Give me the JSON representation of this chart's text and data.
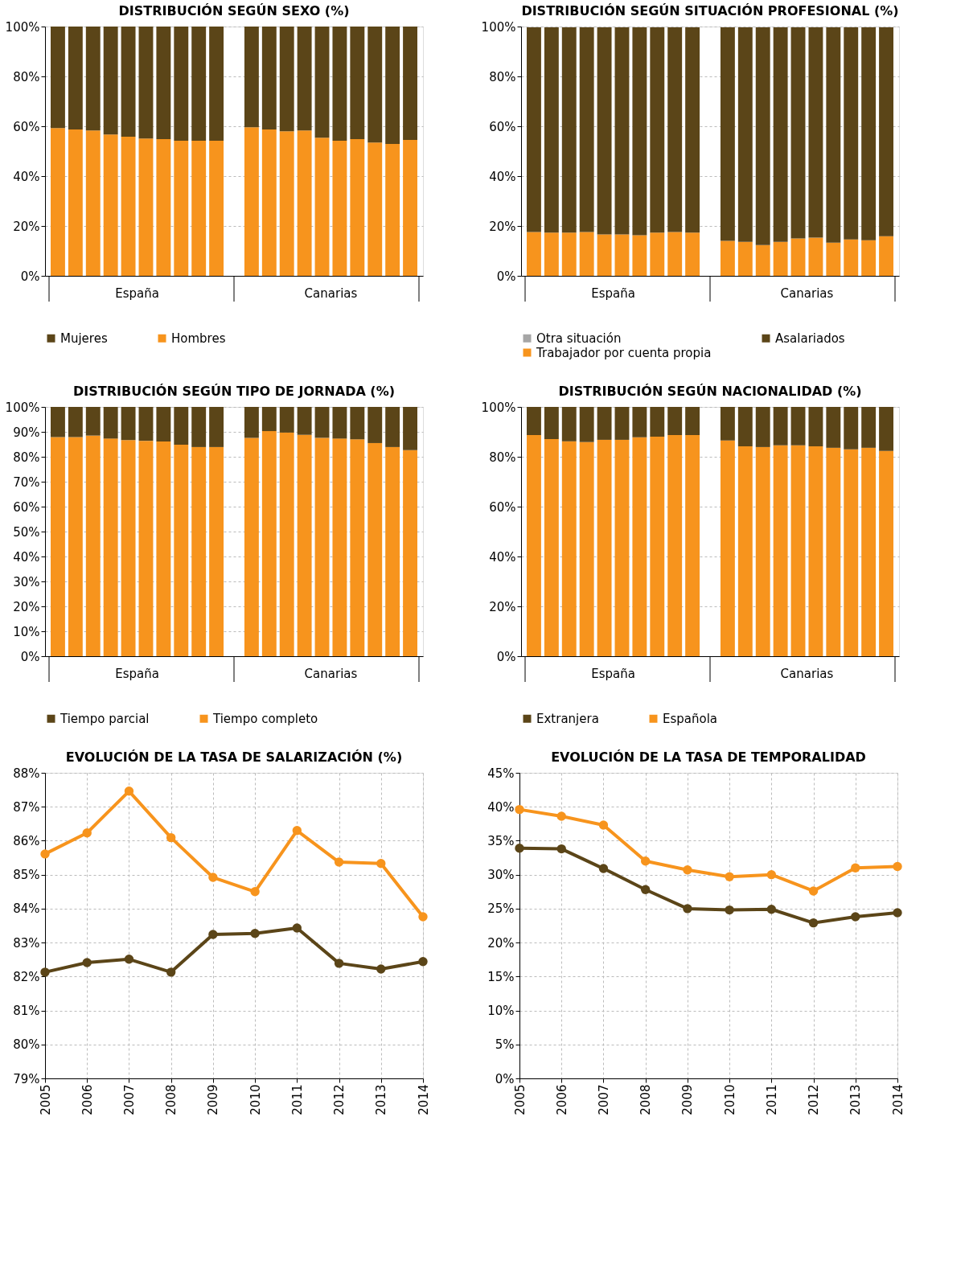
{
  "chart_data": [
    {
      "type": "bar",
      "title": "DISTRIBUCIÓN SEGÚN SEXO (%)",
      "stacked": true,
      "grid": "y",
      "legend": "bottom",
      "categories": [
        null,
        null,
        null,
        null,
        null,
        null,
        null,
        null,
        null,
        null,
        null,
        null,
        null,
        null,
        null,
        null,
        null,
        null,
        null,
        null,
        null
      ],
      "series": [
        {
          "name": "Hombres",
          "color": "#f7941d",
          "values": [
            59.3,
            58.7,
            58.3,
            56.7,
            55.8,
            55.1,
            54.8,
            54.2,
            54.2,
            54.2,
            null,
            59.6,
            58.7,
            58.0,
            58.3,
            55.4,
            54.2,
            54.8,
            53.5,
            52.9,
            54.5
          ]
        },
        {
          "name": "Mujeres",
          "color": "#5b4518",
          "values": [
            40.7,
            41.3,
            41.7,
            43.3,
            44.2,
            44.9,
            45.2,
            45.8,
            45.8,
            45.8,
            null,
            40.4,
            41.3,
            42.0,
            41.7,
            44.6,
            45.8,
            45.2,
            46.5,
            47.1,
            45.5
          ]
        }
      ],
      "ylim": [
        0,
        100
      ],
      "yticks": [
        {
          "value": 0,
          "label": "0%"
        },
        {
          "value": 20,
          "label": "20%"
        },
        {
          "value": 40,
          "label": "40%"
        },
        {
          "value": 60,
          "label": "60%"
        },
        {
          "value": 80,
          "label": "80%"
        },
        {
          "value": 100,
          "label": "100%"
        }
      ],
      "annotations": [
        "España",
        "Canarias"
      ]
    },
    {
      "type": "bar",
      "title": "DISTRIBUCIÓN SEGÚN SITUACIÓN PROFESIONAL (%)",
      "stacked": true,
      "grid": "y",
      "legend": "bottom",
      "categories": [
        null,
        null,
        null,
        null,
        null,
        null,
        null,
        null,
        null,
        null,
        null,
        null,
        null,
        null,
        null,
        null,
        null,
        null,
        null,
        null,
        null
      ],
      "series": [
        {
          "name": "Trabajador por cuenta propia",
          "color": "#f7941d",
          "values": [
            17.6,
            17.3,
            17.3,
            17.6,
            16.6,
            16.6,
            16.3,
            17.3,
            17.6,
            17.3,
            null,
            14.0,
            13.6,
            12.3,
            13.6,
            15.0,
            15.3,
            13.3,
            14.6,
            14.3,
            15.9
          ]
        },
        {
          "name": "Asalariados",
          "color": "#5b4518",
          "values": [
            82.1,
            82.4,
            82.4,
            82.1,
            83.1,
            83.1,
            83.4,
            82.4,
            82.1,
            82.4,
            null,
            85.7,
            86.1,
            87.4,
            86.1,
            84.7,
            84.4,
            86.4,
            85.1,
            85.4,
            83.8
          ]
        },
        {
          "name": "Otra situación",
          "color": "#a6a6a6",
          "values": [
            null,
            null,
            null,
            null,
            null,
            null,
            null,
            null,
            null,
            null,
            null,
            null,
            null,
            null,
            null,
            null,
            null,
            null,
            null,
            null,
            null
          ]
        }
      ],
      "ylim": [
        0,
        100
      ],
      "yticks": [
        {
          "value": 0,
          "label": "0%"
        },
        {
          "value": 20,
          "label": "20%"
        },
        {
          "value": 40,
          "label": "40%"
        },
        {
          "value": 60,
          "label": "60%"
        },
        {
          "value": 80,
          "label": "80%"
        },
        {
          "value": 100,
          "label": "100%"
        }
      ],
      "annotations": [
        "España",
        "Canarias"
      ]
    },
    {
      "type": "bar",
      "title": "DISTRIBUCIÓN SEGÚN TIPO DE JORNADA (%)",
      "stacked": true,
      "grid": "y",
      "legend": "bottom",
      "categories": [
        null,
        null,
        null,
        null,
        null,
        null,
        null,
        null,
        null,
        null,
        null,
        null,
        null,
        null,
        null,
        null,
        null,
        null,
        null,
        null,
        null
      ],
      "series": [
        {
          "name": "Tiempo completo",
          "color": "#f7941d",
          "values": [
            87.9,
            87.9,
            88.5,
            87.3,
            86.7,
            86.4,
            86.1,
            84.8,
            83.9,
            83.9,
            null,
            87.6,
            90.3,
            89.7,
            88.8,
            87.6,
            87.3,
            87.0,
            85.5,
            83.9,
            82.7
          ]
        },
        {
          "name": "Tiempo parcial",
          "color": "#5b4518",
          "values": [
            12.1,
            12.1,
            11.5,
            12.7,
            13.3,
            13.6,
            13.9,
            15.2,
            16.1,
            16.1,
            null,
            12.4,
            9.7,
            10.3,
            11.2,
            12.4,
            12.7,
            13.0,
            14.5,
            16.1,
            17.3
          ]
        }
      ],
      "ylim": [
        0,
        100
      ],
      "yticks": [
        {
          "value": 0,
          "label": "0%"
        },
        {
          "value": 10,
          "label": "10%"
        },
        {
          "value": 20,
          "label": "20%"
        },
        {
          "value": 30,
          "label": "30%"
        },
        {
          "value": 40,
          "label": "40%"
        },
        {
          "value": 50,
          "label": "50%"
        },
        {
          "value": 60,
          "label": "60%"
        },
        {
          "value": 70,
          "label": "70%"
        },
        {
          "value": 80,
          "label": "80%"
        },
        {
          "value": 90,
          "label": "90%"
        },
        {
          "value": 100,
          "label": "100%"
        }
      ],
      "annotations": [
        "España",
        "Canarias"
      ]
    },
    {
      "type": "bar",
      "title": "DISTRIBUCIÓN SEGÚN NACIONALIDAD (%)",
      "stacked": true,
      "grid": "y",
      "legend": "bottom",
      "categories": [
        null,
        null,
        null,
        null,
        null,
        null,
        null,
        null,
        null,
        null,
        null,
        null,
        null,
        null,
        null,
        null,
        null,
        null,
        null,
        null,
        null
      ],
      "series": [
        {
          "name": "Española",
          "color": "#f7941d",
          "values": [
            88.7,
            87.1,
            86.2,
            85.9,
            86.8,
            86.8,
            87.8,
            88.1,
            88.7,
            88.7,
            null,
            86.5,
            84.2,
            83.9,
            84.6,
            84.6,
            84.2,
            83.6,
            83.0,
            83.6,
            82.3
          ]
        },
        {
          "name": "Extranjera",
          "color": "#5b4518",
          "values": [
            11.3,
            12.9,
            13.8,
            14.1,
            13.2,
            13.2,
            12.2,
            11.9,
            11.3,
            11.3,
            null,
            13.5,
            15.8,
            16.1,
            15.4,
            15.4,
            15.8,
            16.4,
            17.0,
            16.4,
            17.7
          ]
        }
      ],
      "ylim": [
        0,
        100
      ],
      "yticks": [
        {
          "value": 0,
          "label": "0%"
        },
        {
          "value": 20,
          "label": "20%"
        },
        {
          "value": 40,
          "label": "40%"
        },
        {
          "value": 60,
          "label": "60%"
        },
        {
          "value": 80,
          "label": "80%"
        },
        {
          "value": 100,
          "label": "100%"
        }
      ],
      "annotations": [
        "España",
        "Canarias"
      ]
    },
    {
      "type": "line",
      "title": "EVOLUCIÓN DE LA TASA DE SALARIZACIÓN (%)",
      "grid": true,
      "marker": "circle",
      "line_style": "solid",
      "x": [
        2005,
        2006,
        2007,
        2008,
        2009,
        2010,
        2011,
        2012,
        2013,
        2014
      ],
      "series": [
        {
          "color": "#f7941d",
          "values": [
            85.61,
            86.23,
            87.46,
            86.09,
            84.92,
            84.5,
            86.3,
            85.37,
            85.33,
            83.76
          ]
        },
        {
          "color": "#5b4518",
          "values": [
            82.13,
            82.41,
            82.51,
            82.13,
            83.24,
            83.27,
            83.43,
            82.39,
            82.22,
            82.44
          ]
        }
      ],
      "xlim": [
        2005,
        2014
      ],
      "xticks": [
        2005,
        2006,
        2007,
        2008,
        2009,
        2010,
        2011,
        2012,
        2013,
        2014
      ],
      "ylim": [
        79,
        88
      ],
      "yticks": [
        {
          "value": 79,
          "label": "79%"
        },
        {
          "value": 80,
          "label": "80%"
        },
        {
          "value": 81,
          "label": "81%"
        },
        {
          "value": 82,
          "label": "82%"
        },
        {
          "value": 83,
          "label": "83%"
        },
        {
          "value": 84,
          "label": "84%"
        },
        {
          "value": 85,
          "label": "85%"
        },
        {
          "value": 86,
          "label": "86%"
        },
        {
          "value": 87,
          "label": "87%"
        },
        {
          "value": 88,
          "label": "88%"
        }
      ]
    },
    {
      "type": "line",
      "title": "EVOLUCIÓN DE LA TASA DE TEMPORALIDAD",
      "grid": true,
      "marker": "circle",
      "line_style": "solid",
      "x": [
        2005,
        2006,
        2007,
        2008,
        2009,
        2010,
        2011,
        2012,
        2013,
        2014
      ],
      "series": [
        {
          "color": "#f7941d",
          "values": [
            39.6,
            38.6,
            37.3,
            32.0,
            30.7,
            29.7,
            30.0,
            27.6,
            31.0,
            31.2
          ]
        },
        {
          "color": "#5b4518",
          "values": [
            33.9,
            33.8,
            30.9,
            27.8,
            25.0,
            24.8,
            24.9,
            22.9,
            23.8,
            24.4
          ]
        }
      ],
      "xlim": [
        2005,
        2014
      ],
      "xticks": [
        2005,
        2006,
        2007,
        2008,
        2009,
        2010,
        2011,
        2012,
        2013,
        2014
      ],
      "ylim": [
        0,
        45
      ],
      "yticks": [
        {
          "value": 0,
          "label": "0%"
        },
        {
          "value": 5,
          "label": "5%"
        },
        {
          "value": 10,
          "label": "10%"
        },
        {
          "value": 15,
          "label": "15%"
        },
        {
          "value": 20,
          "label": "20%"
        },
        {
          "value": 25,
          "label": "25%"
        },
        {
          "value": 30,
          "label": "30%"
        },
        {
          "value": 35,
          "label": "35%"
        },
        {
          "value": 40,
          "label": "40%"
        },
        {
          "value": 45,
          "label": "45%"
        }
      ]
    }
  ]
}
